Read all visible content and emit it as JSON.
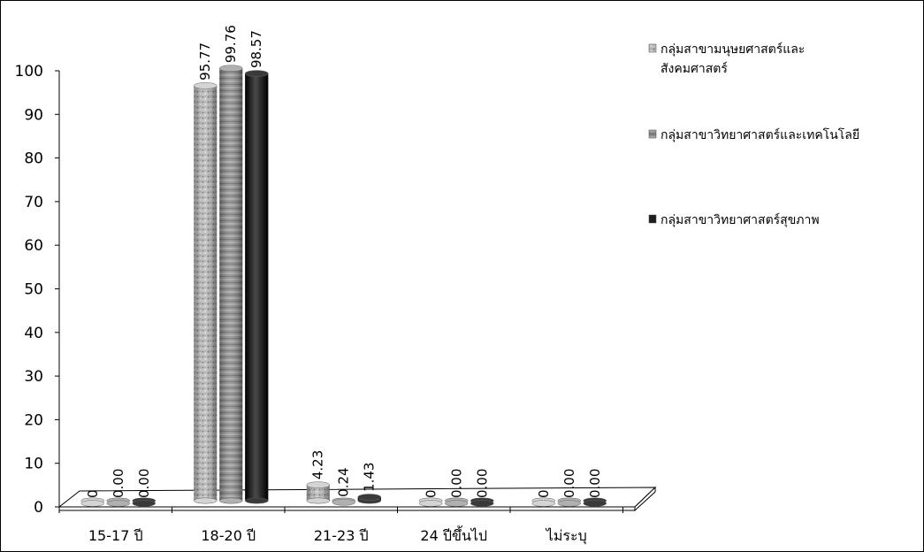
{
  "chart_data": {
    "type": "bar",
    "title": "",
    "xlabel": "",
    "ylabel": "",
    "ylim": [
      0,
      100
    ],
    "yticks": [
      "0",
      "10",
      "20",
      "30",
      "40",
      "50",
      "60",
      "70",
      "80",
      "90",
      "100"
    ],
    "categories": [
      "15-17 ปี",
      "18-20 ปี",
      "21-23 ปี",
      "24 ปีขึ้นไป",
      "ไม่ระบุ"
    ],
    "series": [
      {
        "name": "กลุ่มสาขามนุษยศาสตร์และสังคมศาสตร์",
        "legend_lines": [
          "กลุ่มสาขามนุษยศาสตร์และ",
          "สังคมศาสตร์"
        ],
        "color": "#9a9a9a",
        "values": [
          0,
          95.77,
          4.23,
          0,
          0
        ],
        "labels": [
          "0",
          "95.77",
          "4.23",
          "0",
          "0"
        ]
      },
      {
        "name": "กลุ่มสาขาวิทยาศาสตร์และเทคโนโลยี",
        "legend_lines": [
          "กลุ่มสาขาวิทยาศาสตร์และเทคโนโลยี"
        ],
        "color": "#7a7a7a",
        "values": [
          0,
          99.76,
          0.24,
          0,
          0
        ],
        "labels": [
          "0.00",
          "99.76",
          "0.24",
          "0.00",
          "0.00"
        ]
      },
      {
        "name": "กลุ่มสาขาวิทยาศาสตร์สุขภาพ",
        "legend_lines": [
          "กลุ่มสาขาวิทยาศาสตร์สุขภาพ"
        ],
        "color": "#1e1e1e",
        "values": [
          0,
          98.57,
          1.43,
          0,
          0
        ],
        "labels": [
          "0.00",
          "98.57",
          "1.43",
          "0.00",
          "0.00"
        ]
      }
    ],
    "grid": false,
    "legend_position": "right"
  }
}
